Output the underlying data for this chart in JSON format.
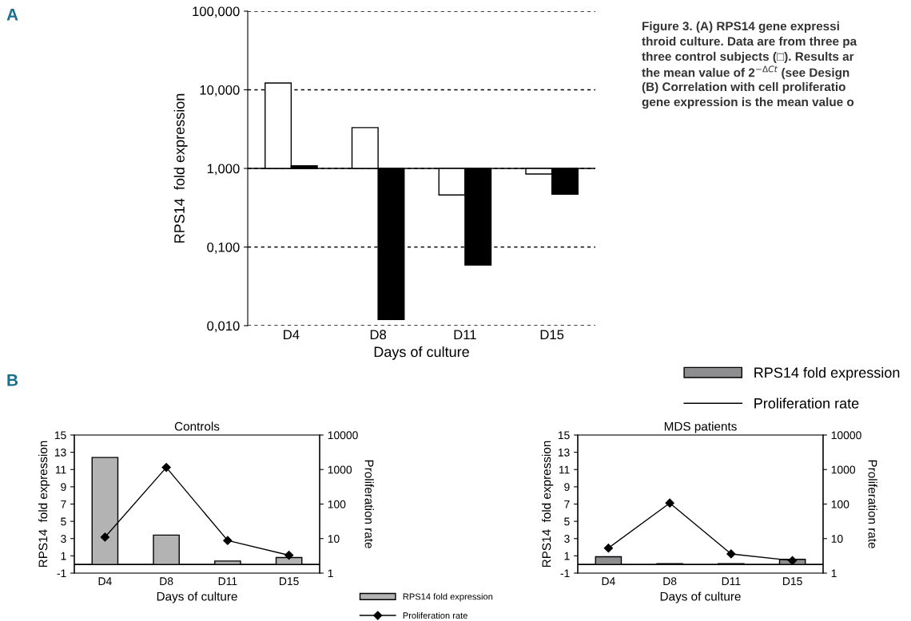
{
  "chart_data": [
    {
      "type": "bar",
      "ylabel": "RPS14  fold expression",
      "xlabel": "Days of culture",
      "categories": [
        "D4",
        "D8",
        "D11",
        "D15"
      ],
      "log": "y",
      "grid": "y",
      "ylim": [
        0.01,
        100
      ],
      "yticks": [
        {
          "value": 0.01,
          "label": "0,010"
        },
        {
          "value": 0.1,
          "label": "0,100"
        },
        {
          "value": 1,
          "label": "1,000"
        },
        {
          "value": 10,
          "label": "10,000"
        },
        {
          "value": 100,
          "label": "100,000"
        }
      ],
      "ref_lines": [
        {
          "axis": "y",
          "value": 1
        }
      ],
      "series": [
        {
          "color": "#ffffff",
          "base": [
            1,
            1,
            1,
            1
          ],
          "values": [
            11.2,
            2.3,
            -0.54,
            -0.15
          ]
        },
        {
          "color": "#000000",
          "base": [
            1,
            1,
            1,
            1
          ],
          "values": [
            0.08,
            -0.988,
            -0.941,
            -0.53
          ]
        }
      ],
      "annotations": [
        "A",
        "Figure 3. (A) RPS14 gene expressi",
        "throid culture. Data are from three pa",
        "three control subjects (□). Results ar",
        "the mean value of 2$^{−ΔCt}$ (see Design",
        "(B) Correlation with cell proliferatio",
        "gene expression is the mean value o"
      ]
    },
    {
      "type": "bar",
      "title": "Controls",
      "ylabel": "RPS14  fold expression",
      "xlabel": "Days of culture",
      "y2label": "Proliferation rate",
      "categories": [
        "D4",
        "D8",
        "D11",
        "D15"
      ],
      "ylim": [
        -1,
        15
      ],
      "yticks": [
        -1,
        1,
        3,
        5,
        7,
        9,
        11,
        13,
        15
      ],
      "log": "y2",
      "y2lim": [
        1,
        10000
      ],
      "y2ticks": [
        1,
        10,
        100,
        1000,
        10000
      ],
      "legend": "bottom right",
      "ref_lines": [
        {
          "axis": "y",
          "value": 0
        }
      ],
      "series": [
        {
          "name": "RPS14 fold expression",
          "color": "#b3b3b3",
          "values": [
            12.4,
            3.4,
            0.4,
            0.8
          ]
        },
        {
          "name": "Proliferation rate",
          "type": "line",
          "axis": "y2",
          "marker": "diamond",
          "color": "#000000",
          "values": [
            11,
            1150,
            8.8,
            3.3
          ]
        }
      ],
      "annotations": [
        "B"
      ]
    },
    {
      "type": "bar",
      "title": "MDS patients",
      "ylabel": "RPS14  fold expression",
      "xlabel": "Days of culture",
      "y2label": "Proliferation rate",
      "categories": [
        "D4",
        "D8",
        "D11",
        "D15"
      ],
      "ylim": [
        -1,
        15
      ],
      "yticks": [
        -1,
        1,
        3,
        5,
        7,
        9,
        11,
        13,
        15
      ],
      "log": "y2",
      "y2lim": [
        1,
        10000
      ],
      "y2ticks": [
        1,
        10,
        100,
        1000,
        10000
      ],
      "legend": "top",
      "ref_lines": [
        {
          "axis": "y",
          "value": 0
        }
      ],
      "series": [
        {
          "name": "RPS14 fold expression",
          "color": "#8e8e90",
          "values": [
            0.9,
            0.1,
            0.1,
            0.6
          ]
        },
        {
          "name": "Proliferation rate",
          "type": "line",
          "axis": "y2",
          "marker": "diamond",
          "color": "#000000",
          "values": [
            5.3,
            107,
            3.6,
            2.3
          ]
        }
      ]
    }
  ]
}
